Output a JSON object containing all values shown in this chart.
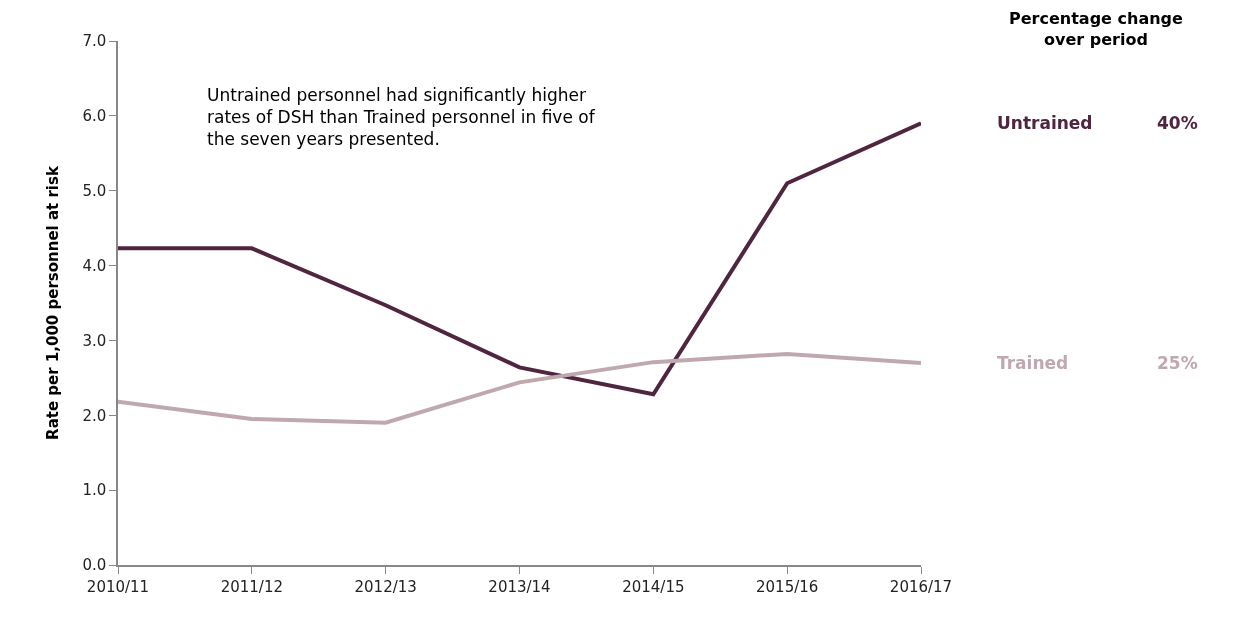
{
  "chart_data": {
    "type": "line",
    "ylabel": "Rate per 1,000 personnel at risk",
    "categories": [
      "2010/11",
      "2011/12",
      "2012/13",
      "2013/14",
      "2014/15",
      "2015/16",
      "2016/17"
    ],
    "series": [
      {
        "name": "Untrained",
        "color": "#4f2540",
        "values": [
          4.23,
          4.23,
          3.47,
          2.64,
          2.28,
          5.1,
          5.9
        ]
      },
      {
        "name": "Trained",
        "color": "#bfa8ae",
        "values": [
          2.18,
          1.95,
          1.9,
          2.44,
          2.71,
          2.82,
          2.7
        ]
      }
    ],
    "annotations": [
      "Untrained personnel had significantly higher\nrates of DSH than Trained personnel in five of\nthe seven years presented.",
      "Percentage change\nover period",
      "40%",
      "25%"
    ],
    "ylim": [
      0,
      7
    ],
    "yticks": [
      {
        "value": 0,
        "label": "0.0"
      },
      {
        "value": 1,
        "label": "1.0"
      },
      {
        "value": 2,
        "label": "2.0"
      },
      {
        "value": 3,
        "label": "3.0"
      },
      {
        "value": 4,
        "label": "4.0"
      },
      {
        "value": 5,
        "label": "5.0"
      },
      {
        "value": 6,
        "label": "6.0"
      },
      {
        "value": 7,
        "label": "7.0"
      }
    ],
    "legend": false,
    "marker": "none",
    "line_style": "solid"
  }
}
